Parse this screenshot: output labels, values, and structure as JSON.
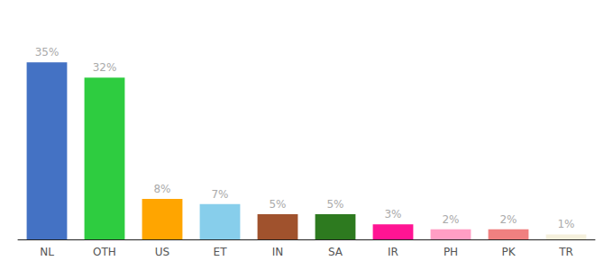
{
  "chart_data": {
    "type": "bar",
    "categories": [
      "NL",
      "OTH",
      "US",
      "ET",
      "IN",
      "SA",
      "IR",
      "PH",
      "PK",
      "TR"
    ],
    "values": [
      35,
      32,
      8,
      7,
      5,
      5,
      3,
      2,
      2,
      1
    ],
    "value_labels": [
      "35%",
      "32%",
      "8%",
      "7%",
      "5%",
      "5%",
      "3%",
      "2%",
      "2%",
      "1%"
    ],
    "colors": [
      "#4472C4",
      "#2ECC40",
      "#FFA500",
      "#87CEEB",
      "#A0522D",
      "#2D7A1F",
      "#FF1493",
      "#FF9EC4",
      "#F08080",
      "#F5F0DC"
    ],
    "ylim": [
      0,
      42
    ],
    "grid": false,
    "data_labels": true,
    "tick_labels": "x"
  }
}
